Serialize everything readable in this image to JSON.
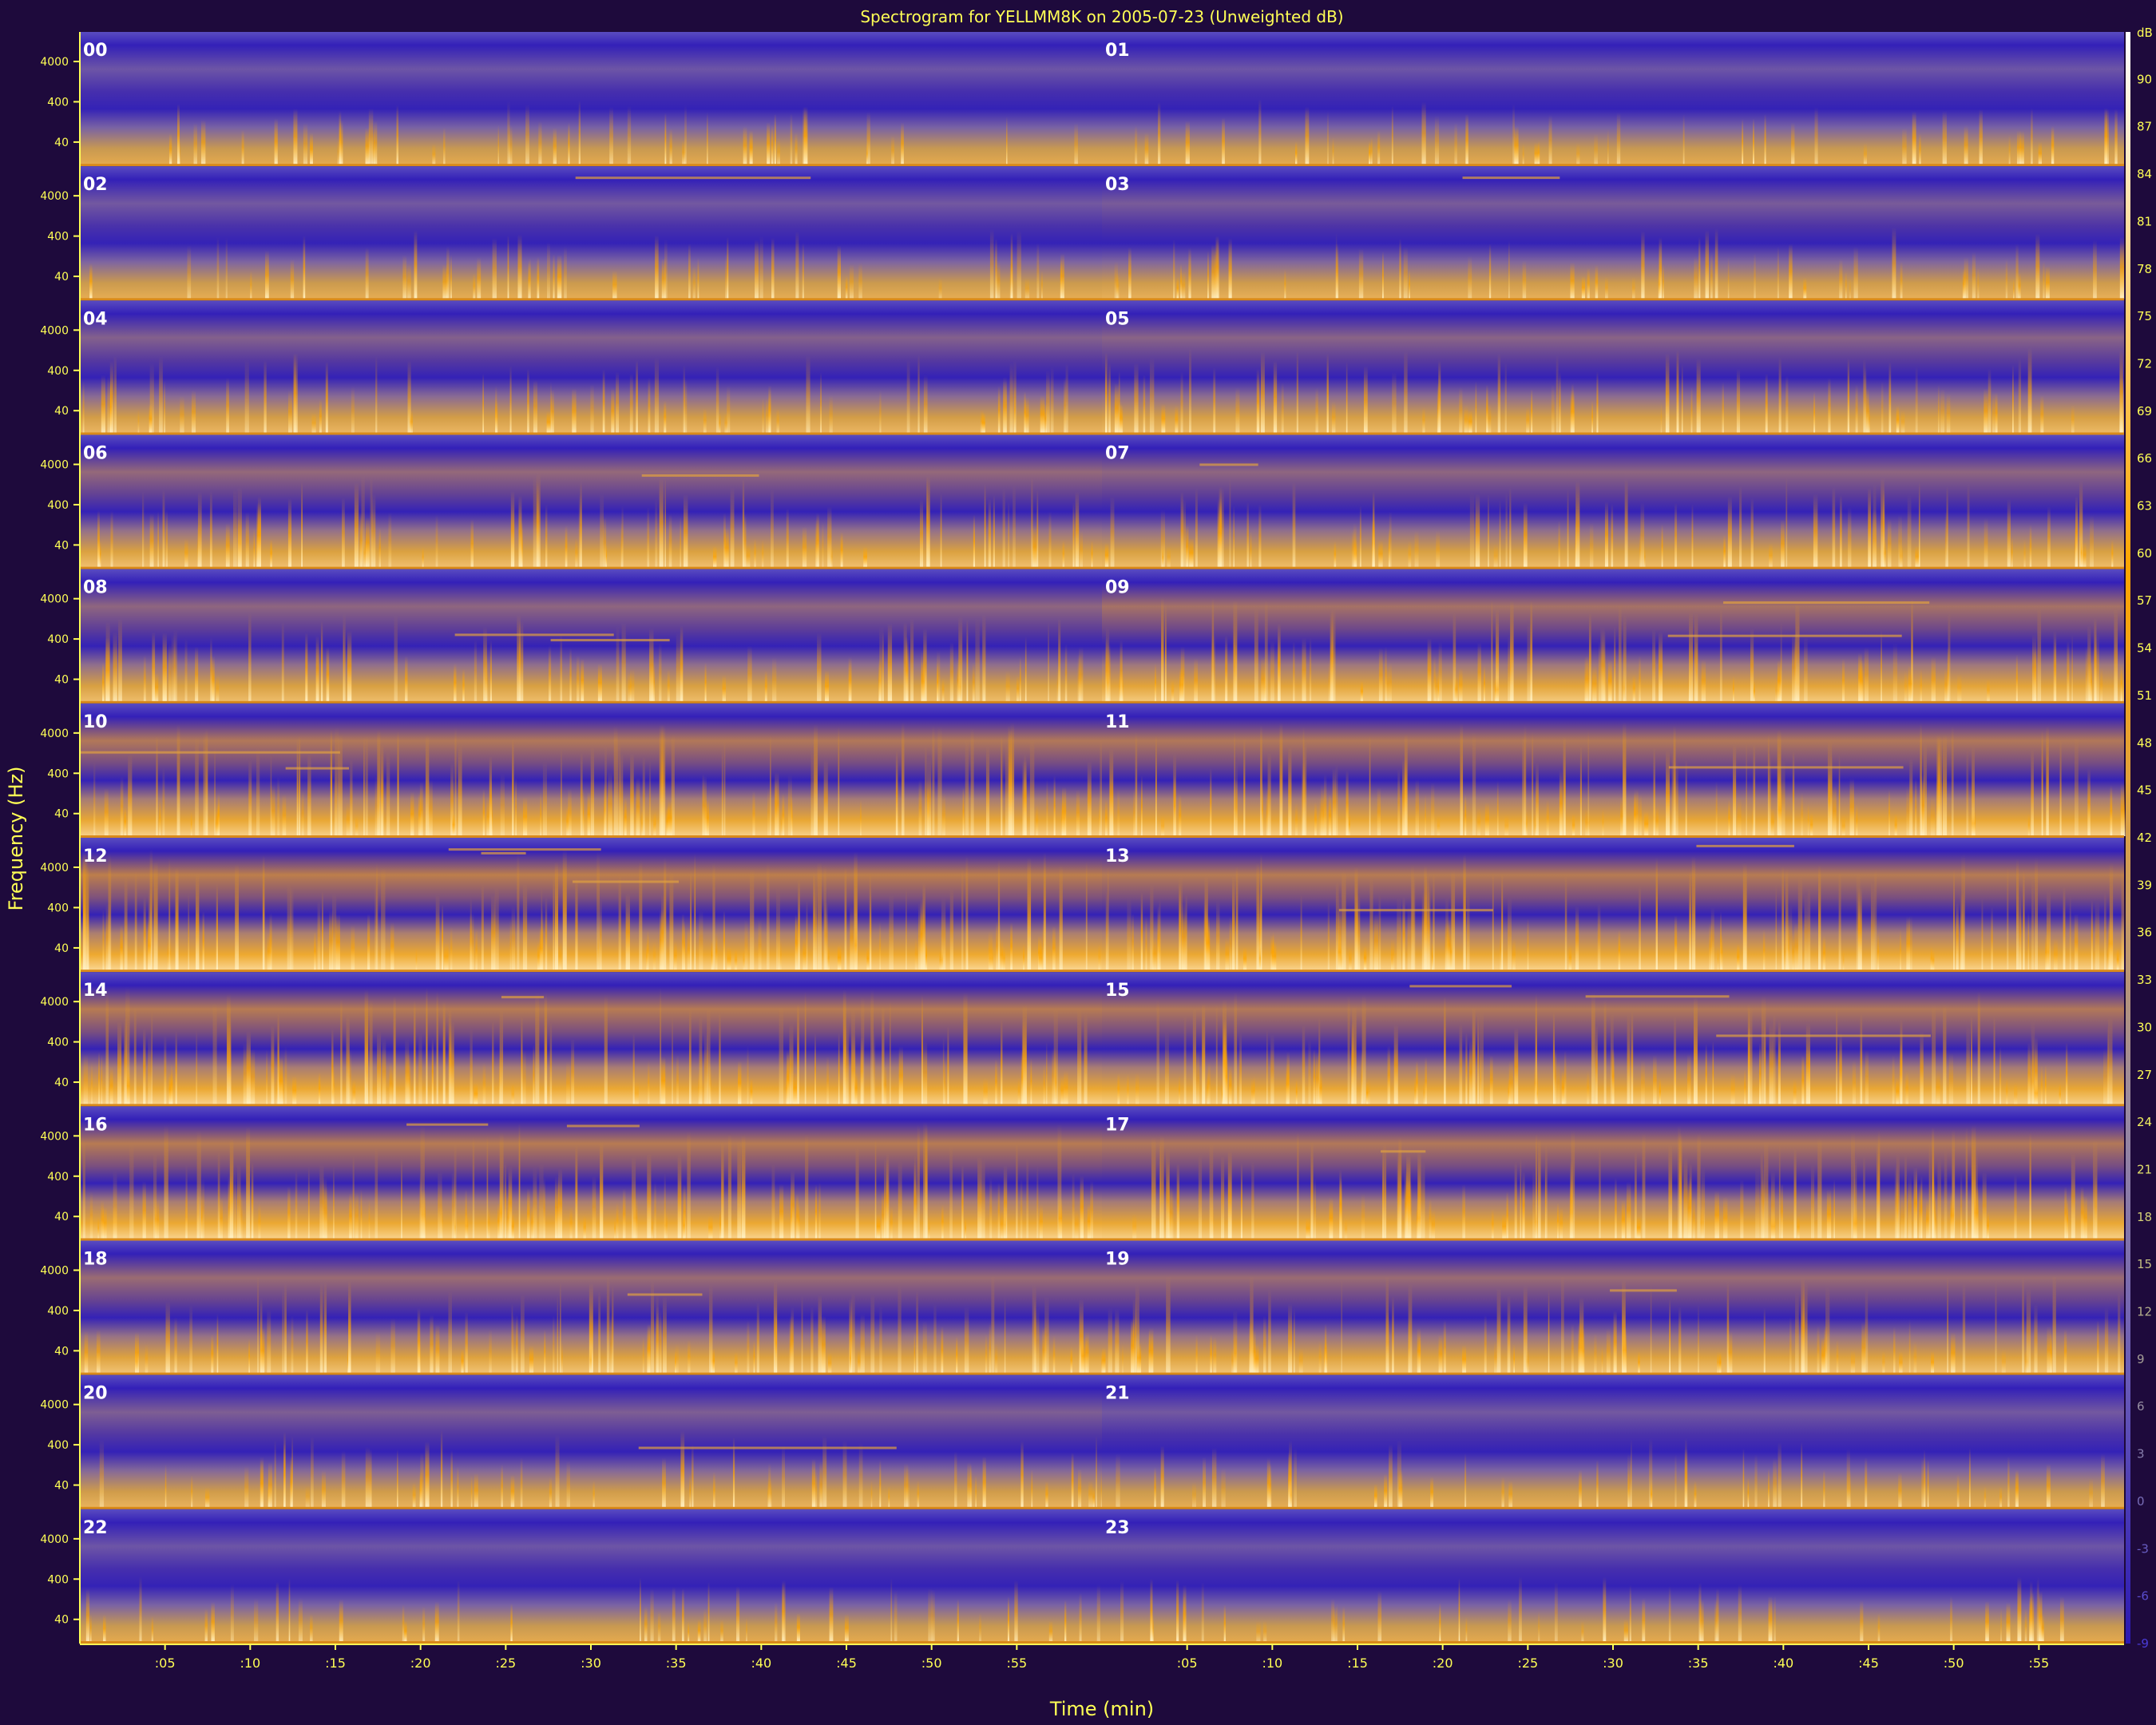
{
  "chart_data": {
    "type": "heatmap",
    "title": "Spectrogram for YELLMM8K on 2005-07-23 (Unweighted dB)",
    "xlabel": "Time (min)",
    "ylabel": "Frequency (Hz)",
    "panel_labels": [
      "00",
      "01",
      "02",
      "03",
      "04",
      "05",
      "06",
      "07",
      "08",
      "09",
      "10",
      "11",
      "12",
      "13",
      "14",
      "15",
      "16",
      "17",
      "18",
      "19",
      "20",
      "21",
      "22",
      "23"
    ],
    "panel_columns": 2,
    "panel_rows": 12,
    "y_tick_labels": [
      "4000",
      "400",
      "40"
    ],
    "x_tick_labels": [
      ":05",
      ":10",
      ":15",
      ":20",
      ":25",
      ":30",
      ":35",
      ":40",
      ":45",
      ":50",
      ":55"
    ],
    "colorbar_unit": "dB",
    "colorbar_ticks": [
      90,
      87,
      84,
      81,
      78,
      75,
      72,
      69,
      66,
      63,
      60,
      57,
      54,
      51,
      48,
      45,
      42,
      39,
      36,
      33,
      30,
      27,
      24,
      21,
      18,
      15,
      12,
      9,
      6,
      3,
      0,
      -3,
      -6,
      -9
    ],
    "colorbar_range": [
      -9,
      93
    ],
    "colormap": [
      "#2a18b4",
      "#6a5cb8",
      "#9a8aa0",
      "#d9a14a",
      "#ffa500",
      "#ffd27a",
      "#ffffff"
    ],
    "hourly_activity": [
      0.15,
      0.15,
      0.2,
      0.25,
      0.35,
      0.4,
      0.5,
      0.45,
      0.45,
      0.65,
      0.75,
      0.75,
      0.85,
      0.8,
      0.8,
      0.75,
      0.8,
      0.75,
      0.55,
      0.55,
      0.3,
      0.2,
      0.15,
      0.15
    ]
  },
  "colors": {
    "background": "#1e0a3c",
    "text": "#ffff55",
    "panel_label": "#ffffff",
    "axis_line": "#ffff55"
  }
}
